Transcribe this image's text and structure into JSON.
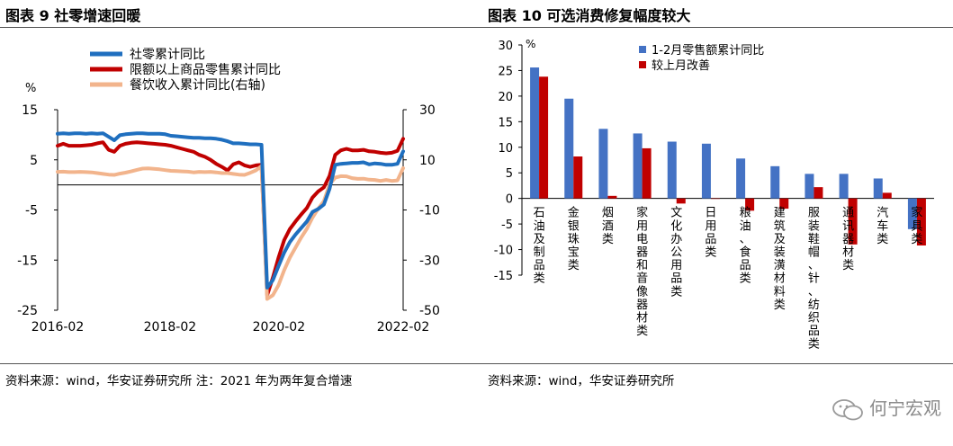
{
  "left": {
    "title": "图表 9  社零增速回暖",
    "source": "资料来源：wind，华安证券研究所  注：2021 年为两年复合增速"
  },
  "right": {
    "title": "图表 10  可选消费修复幅度较大",
    "source": "资料来源：wind，华安证券研究所"
  },
  "watermark": "何宁宏观",
  "chart_data": [
    {
      "type": "line",
      "title": "社零增速回暖",
      "ylabel": "%",
      "ylim": [
        -25,
        15
      ],
      "y2lim": [
        -50,
        30
      ],
      "yticks": [
        15,
        5,
        -5,
        -15,
        -25
      ],
      "y2ticks": [
        30,
        10,
        -10,
        -30,
        -50
      ],
      "xticks": [
        "2016-02",
        "2018-02",
        "2020-02",
        "2022-02"
      ],
      "legend": "top-left",
      "colors": {
        "retail": "#1f6fbf",
        "above_limit": "#c00000",
        "catering": "#f2b48c"
      },
      "series": [
        {
          "name": "社零累计同比",
          "axis": "left",
          "values": [
            10.2,
            10.3,
            10.2,
            10.3,
            10.3,
            10.2,
            10.3,
            10.2,
            10.3,
            9.6,
            8.9,
            9.9,
            10.1,
            10.2,
            10.3,
            10.3,
            10.2,
            10.2,
            10.2,
            10.1,
            9.8,
            9.7,
            9.6,
            9.5,
            9.4,
            9.4,
            9.3,
            9.3,
            9.2,
            9.0,
            8.7,
            8.3,
            8.3,
            8.2,
            8.1,
            8.1,
            8.0,
            -20.5,
            -19.0,
            -16.2,
            -13.5,
            -11.4,
            -9.9,
            -8.6,
            -7.3,
            -5.4,
            -4.8,
            -3.9,
            -0.8,
            4.0,
            4.2,
            4.3,
            4.4,
            4.4,
            4.5,
            4.1,
            4.3,
            4.2,
            4.0,
            4.0,
            4.2,
            6.7
          ]
        },
        {
          "name": "限额以上商品零售累计同比",
          "axis": "left",
          "values": [
            7.8,
            8.2,
            7.8,
            7.8,
            7.8,
            7.9,
            8.0,
            8.3,
            8.5,
            7.0,
            6.6,
            7.8,
            8.2,
            8.4,
            8.5,
            8.4,
            8.3,
            8.2,
            8.1,
            8.0,
            7.8,
            7.5,
            7.2,
            6.9,
            6.6,
            6.0,
            5.6,
            5.0,
            4.2,
            3.6,
            2.9,
            4.1,
            4.5,
            3.9,
            3.6,
            3.9,
            4.0,
            -22.0,
            -18.5,
            -14.5,
            -11.0,
            -8.8,
            -7.3,
            -5.9,
            -4.6,
            -2.5,
            -1.3,
            -0.5,
            1.8,
            6.0,
            6.9,
            7.2,
            6.9,
            6.9,
            7.0,
            6.7,
            6.6,
            6.4,
            6.3,
            6.4,
            6.8,
            9.2
          ]
        },
        {
          "name": "餐饮收入累计同比(右轴)",
          "axis": "right",
          "values": [
            5.2,
            5.3,
            5.1,
            5.1,
            5.2,
            5.1,
            5.0,
            4.7,
            4.4,
            4.1,
            4.0,
            4.5,
            4.9,
            5.4,
            6.0,
            6.5,
            6.6,
            6.4,
            6.2,
            5.9,
            5.6,
            5.5,
            5.4,
            5.3,
            5.0,
            5.2,
            5.1,
            5.2,
            5.0,
            4.7,
            4.7,
            4.4,
            4.1,
            4.0,
            4.8,
            5.8,
            7.5,
            -45.5,
            -44.0,
            -40.0,
            -34.0,
            -29.0,
            -25.0,
            -21.0,
            -17.5,
            -13.0,
            -9.5,
            -6.5,
            0.1,
            2.9,
            3.5,
            3.4,
            2.7,
            2.4,
            2.5,
            2.1,
            2.0,
            1.6,
            2.0,
            1.6,
            1.8,
            6.7
          ]
        }
      ]
    },
    {
      "type": "bar",
      "title": "可选消费修复幅度较大",
      "ylabel": "%",
      "ylim": [
        -15,
        30
      ],
      "yticks": [
        30,
        25,
        20,
        15,
        10,
        5,
        0,
        -5,
        -10,
        -15
      ],
      "legend": "top-right",
      "colors": {
        "ytd": "#4472c4",
        "improve": "#c00000"
      },
      "categories": [
        "石油及制品类",
        "金银珠宝类",
        "烟酒类",
        "家用电器和音像器材类",
        "文化办公用品类",
        "日用品类",
        "粮油、食品类",
        "建筑及装潢材料类",
        "服装鞋帽、针、纺织品类",
        "通讯器材类",
        "汽车类",
        "家具类"
      ],
      "series": [
        {
          "name": "1-2月零售额累计同比",
          "values": [
            25.6,
            19.5,
            13.6,
            12.7,
            11.1,
            10.7,
            7.8,
            6.3,
            4.8,
            4.8,
            3.9,
            -6.0
          ]
        },
        {
          "name": "较上月改善",
          "values": [
            23.8,
            8.2,
            0.5,
            9.8,
            -1.0,
            0.0,
            -2.4,
            -2.0,
            2.2,
            -9.0,
            1.1,
            -9.2
          ]
        }
      ]
    }
  ]
}
